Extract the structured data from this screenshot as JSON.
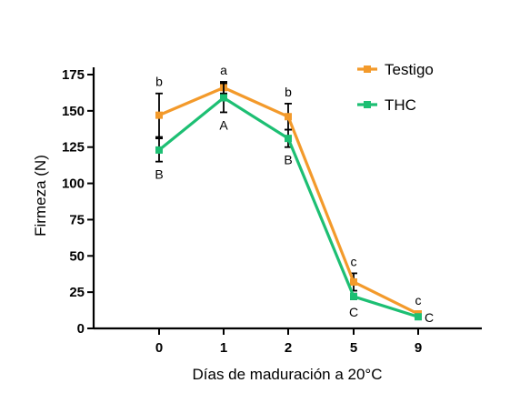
{
  "chart_data": {
    "type": "line",
    "title": "",
    "xlabel": "Días de maduración a 20°C",
    "ylabel": "Firmeza (N)",
    "categories": [
      "0",
      "1",
      "2",
      "5",
      "9"
    ],
    "ylim": [
      0,
      175
    ],
    "yticks": [
      "0",
      "25",
      "50",
      "75",
      "100",
      "125",
      "150",
      "175"
    ],
    "grid": false,
    "legend_position": "top-right",
    "series": [
      {
        "name": "Testigo",
        "color": "#F39A2B",
        "values": [
          147,
          166,
          146,
          32,
          10
        ],
        "error": [
          15,
          4,
          9,
          6,
          1
        ],
        "letters": [
          "b",
          "a",
          "b",
          "c",
          "c"
        ]
      },
      {
        "name": "THC",
        "color": "#1DBF73",
        "values": [
          123,
          159,
          131,
          22,
          8
        ],
        "error": [
          8,
          10,
          6,
          2,
          1
        ],
        "letters": [
          "B",
          "A",
          "B",
          "C",
          "C"
        ]
      }
    ]
  }
}
